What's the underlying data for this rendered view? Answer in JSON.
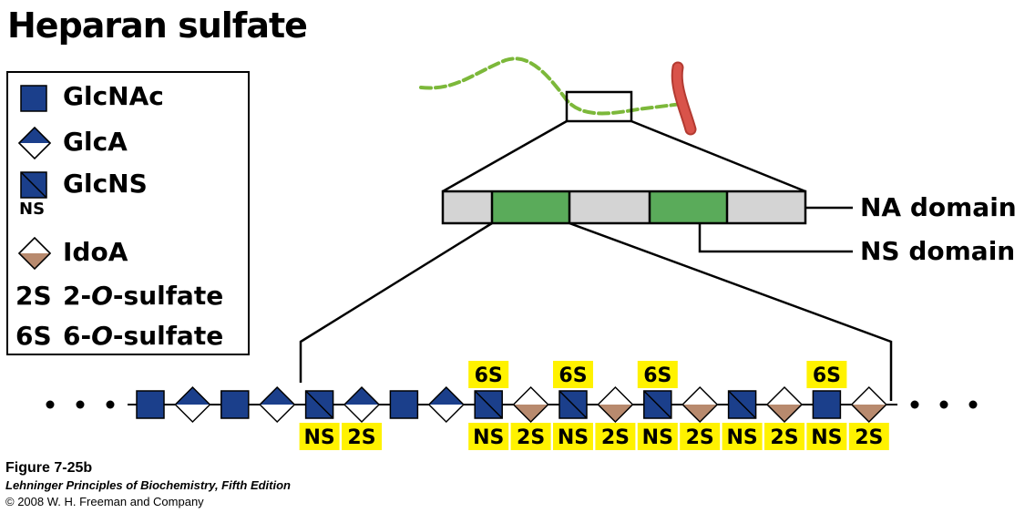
{
  "title": "Heparan sulfate",
  "legend": {
    "glcnac": "GlcNAc",
    "glca": "GlcA",
    "glcns": "GlcNS",
    "ns_sub": "NS",
    "idoa": "IdoA",
    "s2_abbr": "2S",
    "s2_pre": "2-",
    "s2_italic": "O",
    "s2_post": "-sulfate",
    "s6_abbr": "6S",
    "s6_pre": "6-",
    "s6_italic": "O",
    "s6_post": "-sulfate"
  },
  "domains": {
    "na": "NA domain",
    "ns": "NS domain"
  },
  "chain_tags": {
    "ns": "NS",
    "s2": "2S",
    "s6": "6S"
  },
  "chain": [
    {
      "kind": "glcnac"
    },
    {
      "kind": "glca"
    },
    {
      "kind": "glcnac"
    },
    {
      "kind": "glca"
    },
    {
      "kind": "glcns",
      "below": "NS"
    },
    {
      "kind": "glca",
      "below": "2S"
    },
    {
      "kind": "glcnac"
    },
    {
      "kind": "glca"
    },
    {
      "kind": "glcns",
      "above": "6S",
      "below": "NS"
    },
    {
      "kind": "idoa",
      "below": "2S"
    },
    {
      "kind": "glcns",
      "above": "6S",
      "below": "NS"
    },
    {
      "kind": "idoa",
      "below": "2S"
    },
    {
      "kind": "glcns",
      "above": "6S",
      "below": "NS"
    },
    {
      "kind": "idoa",
      "below": "2S"
    },
    {
      "kind": "glcns",
      "below": "NS"
    },
    {
      "kind": "idoa",
      "below": "2S"
    },
    {
      "kind": "glcnac",
      "above": "6S",
      "below": "NS"
    },
    {
      "kind": "idoa",
      "below": "2S"
    }
  ],
  "caption": {
    "figure": "Figure 7-25b",
    "book": "Lehninger Principles of Biochemistry, Fifth Edition",
    "copyright": "© 2008 W. H. Freeman and Company"
  },
  "colors": {
    "navy": "#1b3f8b",
    "tan": "#b88a6e",
    "green_domain": "#5aab5a",
    "gray_domain": "#d4d4d4",
    "highlight": "#fff200",
    "chain_green": "#7cb83a",
    "protein_red": "#d9534a"
  }
}
